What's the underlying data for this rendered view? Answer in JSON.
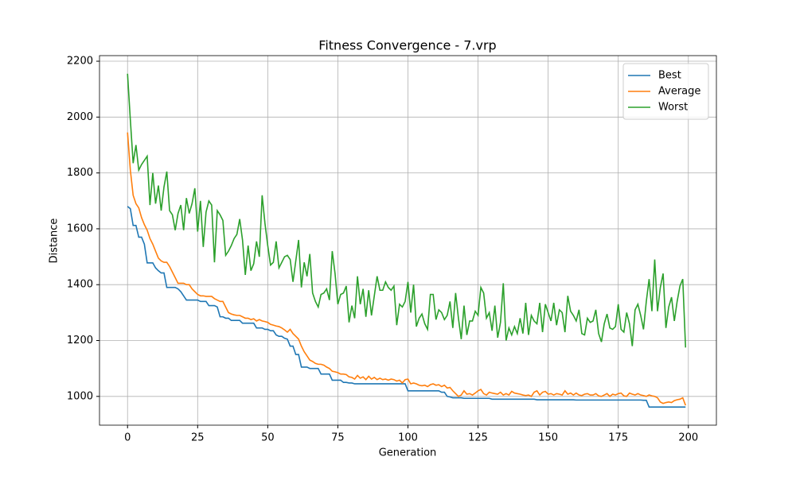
{
  "chart_data": {
    "type": "line",
    "title": "Fitness Convergence - 7.vrp",
    "xlabel": "Generation",
    "ylabel": "Distance",
    "x": [
      0,
      1,
      2,
      3,
      4,
      5,
      6,
      7,
      8,
      9,
      10,
      11,
      12,
      13,
      14,
      15,
      16,
      17,
      18,
      19,
      20,
      21,
      22,
      23,
      24,
      25,
      26,
      27,
      28,
      29,
      30,
      31,
      32,
      33,
      34,
      35,
      36,
      37,
      38,
      39,
      40,
      41,
      42,
      43,
      44,
      45,
      46,
      47,
      48,
      49,
      50,
      51,
      52,
      53,
      54,
      55,
      56,
      57,
      58,
      59,
      60,
      61,
      62,
      63,
      64,
      65,
      66,
      67,
      68,
      69,
      70,
      71,
      72,
      73,
      74,
      75,
      76,
      77,
      78,
      79,
      80,
      81,
      82,
      83,
      84,
      85,
      86,
      87,
      88,
      89,
      90,
      91,
      92,
      93,
      94,
      95,
      96,
      97,
      98,
      99,
      100,
      101,
      102,
      103,
      104,
      105,
      106,
      107,
      108,
      109,
      110,
      111,
      112,
      113,
      114,
      115,
      116,
      117,
      118,
      119,
      120,
      121,
      122,
      123,
      124,
      125,
      126,
      127,
      128,
      129,
      130,
      131,
      132,
      133,
      134,
      135,
      136,
      137,
      138,
      139,
      140,
      141,
      142,
      143,
      144,
      145,
      146,
      147,
      148,
      149,
      150,
      151,
      152,
      153,
      154,
      155,
      156,
      157,
      158,
      159,
      160,
      161,
      162,
      163,
      164,
      165,
      166,
      167,
      168,
      169,
      170,
      171,
      172,
      173,
      174,
      175,
      176,
      177,
      178,
      179,
      180,
      181,
      182,
      183,
      184,
      185,
      186,
      187,
      188,
      189,
      190,
      191,
      192,
      193,
      194,
      195,
      196,
      197,
      198,
      199
    ],
    "series": [
      {
        "name": "Best",
        "color": "#1f77b4",
        "values": [
          1680,
          1672,
          1612,
          1612,
          1570,
          1570,
          1545,
          1478,
          1478,
          1478,
          1460,
          1450,
          1442,
          1442,
          1390,
          1390,
          1390,
          1390,
          1385,
          1375,
          1360,
          1345,
          1345,
          1345,
          1345,
          1345,
          1340,
          1340,
          1340,
          1325,
          1325,
          1325,
          1320,
          1285,
          1285,
          1280,
          1280,
          1272,
          1272,
          1272,
          1272,
          1262,
          1262,
          1262,
          1262,
          1262,
          1245,
          1245,
          1245,
          1240,
          1240,
          1235,
          1235,
          1220,
          1215,
          1215,
          1208,
          1205,
          1180,
          1180,
          1150,
          1150,
          1105,
          1105,
          1105,
          1100,
          1100,
          1100,
          1100,
          1080,
          1080,
          1080,
          1080,
          1058,
          1058,
          1058,
          1058,
          1050,
          1050,
          1048,
          1048,
          1045,
          1045,
          1045,
          1045,
          1045,
          1045,
          1045,
          1045,
          1045,
          1045,
          1045,
          1045,
          1045,
          1045,
          1045,
          1045,
          1045,
          1045,
          1045,
          1020,
          1020,
          1020,
          1020,
          1020,
          1020,
          1020,
          1020,
          1020,
          1020,
          1020,
          1020,
          1015,
          1015,
          1000,
          998,
          995,
          995,
          995,
          995,
          993,
          993,
          993,
          993,
          993,
          993,
          993,
          993,
          993,
          993,
          990,
          990,
          990,
          990,
          990,
          990,
          990,
          990,
          990,
          990,
          990,
          990,
          990,
          990,
          990,
          990,
          988,
          988,
          988,
          988,
          988,
          988,
          988,
          988,
          988,
          988,
          988,
          988,
          988,
          988,
          987,
          987,
          987,
          987,
          987,
          987,
          987,
          987,
          987,
          987,
          987,
          987,
          987,
          987,
          987,
          987,
          987,
          987,
          987,
          987,
          987,
          987,
          987,
          987,
          986,
          986,
          962,
          962,
          962,
          962,
          962,
          962,
          962,
          962,
          962,
          962,
          962,
          962,
          962,
          962
        ]
      },
      {
        "name": "Average",
        "color": "#ff7f0e",
        "values": [
          1945,
          1810,
          1720,
          1690,
          1675,
          1640,
          1615,
          1595,
          1565,
          1545,
          1520,
          1495,
          1485,
          1480,
          1480,
          1465,
          1445,
          1425,
          1405,
          1405,
          1405,
          1400,
          1400,
          1385,
          1375,
          1365,
          1360,
          1360,
          1358,
          1358,
          1358,
          1350,
          1345,
          1340,
          1340,
          1320,
          1300,
          1295,
          1292,
          1290,
          1290,
          1285,
          1280,
          1280,
          1275,
          1278,
          1270,
          1275,
          1270,
          1268,
          1265,
          1258,
          1255,
          1252,
          1250,
          1245,
          1238,
          1230,
          1240,
          1225,
          1215,
          1205,
          1180,
          1160,
          1145,
          1130,
          1125,
          1118,
          1115,
          1115,
          1112,
          1105,
          1100,
          1090,
          1088,
          1085,
          1080,
          1080,
          1078,
          1070,
          1068,
          1062,
          1075,
          1065,
          1070,
          1060,
          1072,
          1062,
          1068,
          1060,
          1065,
          1060,
          1062,
          1058,
          1062,
          1060,
          1055,
          1058,
          1048,
          1060,
          1062,
          1045,
          1048,
          1045,
          1040,
          1038,
          1040,
          1035,
          1042,
          1045,
          1040,
          1042,
          1035,
          1040,
          1030,
          1032,
          1020,
          1010,
          1000,
          1005,
          1020,
          1008,
          1010,
          1005,
          1012,
          1020,
          1025,
          1010,
          1005,
          1015,
          1012,
          1010,
          1008,
          1015,
          1005,
          1010,
          1005,
          1018,
          1012,
          1010,
          1008,
          1005,
          1003,
          1005,
          1000,
          1015,
          1020,
          1005,
          1015,
          1018,
          1008,
          1010,
          1005,
          1010,
          1008,
          1005,
          1020,
          1008,
          1012,
          1005,
          1012,
          1005,
          1003,
          1008,
          1010,
          1005,
          1005,
          1010,
          1002,
          1000,
          1005,
          1010,
          1000,
          1008,
          1005,
          1010,
          1012,
          1002,
          1000,
          1012,
          1008,
          1005,
          1010,
          1005,
          1003,
          1000,
          1005,
          1002,
          1000,
          995,
          980,
          975,
          978,
          980,
          978,
          985,
          988,
          990,
          995,
          968
        ]
      },
      {
        "name": "Worst",
        "color": "#2ca02c",
        "values": [
          2155,
          1990,
          1835,
          1900,
          1810,
          1830,
          1845,
          1860,
          1685,
          1800,
          1690,
          1755,
          1665,
          1750,
          1805,
          1665,
          1650,
          1595,
          1655,
          1685,
          1595,
          1710,
          1655,
          1690,
          1745,
          1590,
          1700,
          1535,
          1660,
          1700,
          1685,
          1480,
          1665,
          1650,
          1630,
          1505,
          1520,
          1540,
          1565,
          1580,
          1635,
          1560,
          1435,
          1540,
          1450,
          1475,
          1555,
          1500,
          1720,
          1620,
          1540,
          1470,
          1480,
          1555,
          1460,
          1480,
          1500,
          1505,
          1490,
          1410,
          1485,
          1560,
          1390,
          1480,
          1430,
          1510,
          1370,
          1340,
          1320,
          1365,
          1370,
          1385,
          1345,
          1520,
          1440,
          1330,
          1365,
          1370,
          1395,
          1265,
          1325,
          1280,
          1430,
          1330,
          1385,
          1285,
          1380,
          1290,
          1360,
          1430,
          1380,
          1380,
          1410,
          1390,
          1380,
          1395,
          1255,
          1330,
          1320,
          1340,
          1410,
          1300,
          1400,
          1250,
          1280,
          1295,
          1260,
          1240,
          1365,
          1365,
          1275,
          1310,
          1300,
          1275,
          1290,
          1340,
          1245,
          1370,
          1280,
          1205,
          1325,
          1220,
          1270,
          1270,
          1305,
          1290,
          1390,
          1370,
          1280,
          1300,
          1235,
          1325,
          1210,
          1265,
          1405,
          1200,
          1245,
          1220,
          1250,
          1225,
          1280,
          1225,
          1335,
          1220,
          1290,
          1270,
          1260,
          1335,
          1230,
          1330,
          1300,
          1270,
          1335,
          1255,
          1310,
          1300,
          1230,
          1360,
          1305,
          1290,
          1270,
          1310,
          1225,
          1220,
          1280,
          1265,
          1270,
          1310,
          1225,
          1195,
          1260,
          1295,
          1245,
          1240,
          1250,
          1330,
          1240,
          1230,
          1300,
          1260,
          1180,
          1310,
          1330,
          1290,
          1240,
          1340,
          1420,
          1305,
          1490,
          1305,
          1390,
          1440,
          1245,
          1320,
          1355,
          1270,
          1340,
          1395,
          1420,
          1175
        ]
      }
    ],
    "xlim": [
      -10,
      210
    ],
    "ylim": [
      897,
      2220
    ],
    "xticks": [
      0,
      25,
      50,
      75,
      100,
      125,
      150,
      175,
      200
    ],
    "yticks": [
      1000,
      1200,
      1400,
      1600,
      1800,
      2000,
      2200
    ],
    "grid": true,
    "legend": "upper right"
  }
}
